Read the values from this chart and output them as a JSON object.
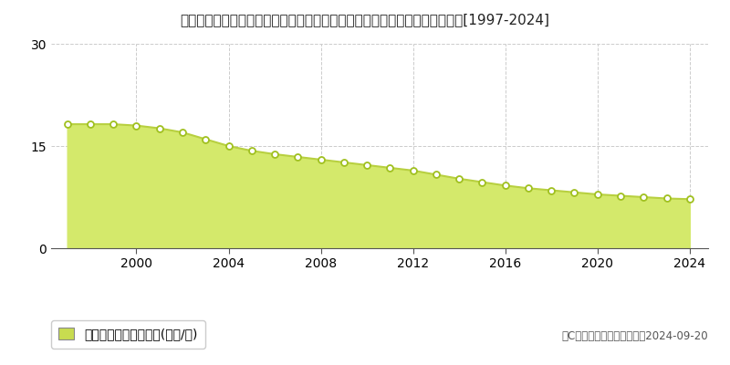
{
  "title": "広島県広島市安佐北区安佐町大字くすの木台２０番６　基準地価　地価推移[1997-2024]",
  "years": [
    1997,
    1998,
    1999,
    2000,
    2001,
    2002,
    2003,
    2004,
    2005,
    2006,
    2007,
    2008,
    2009,
    2010,
    2011,
    2012,
    2013,
    2014,
    2015,
    2016,
    2017,
    2018,
    2019,
    2020,
    2021,
    2022,
    2023,
    2024
  ],
  "values": [
    18.2,
    18.2,
    18.2,
    18.0,
    17.6,
    17.0,
    16.0,
    15.0,
    14.3,
    13.8,
    13.4,
    13.0,
    12.6,
    12.2,
    11.8,
    11.4,
    10.8,
    10.2,
    9.7,
    9.2,
    8.8,
    8.5,
    8.2,
    7.9,
    7.7,
    7.5,
    7.3,
    7.2
  ],
  "fill_color": "#d4e96b",
  "line_color": "#b8d040",
  "marker_facecolor": "#ffffff",
  "marker_edgecolor": "#a0c020",
  "background_color": "#ffffff",
  "grid_color": "#cccccc",
  "ylim": [
    0,
    30
  ],
  "yticks": [
    0,
    15,
    30
  ],
  "xtick_labels": [
    2000,
    2004,
    2008,
    2012,
    2016,
    2020,
    2024
  ],
  "xlim_left": 1996.3,
  "xlim_right": 2024.8,
  "legend_label": "基準地価　平均啶単価(万円/啶)",
  "legend_square_color": "#c8dc50",
  "copyright_text": "（C）土地価格ドットコム　2024-09-20",
  "title_fontsize": 11,
  "tick_fontsize": 10,
  "legend_fontsize": 10,
  "copyright_fontsize": 8.5
}
